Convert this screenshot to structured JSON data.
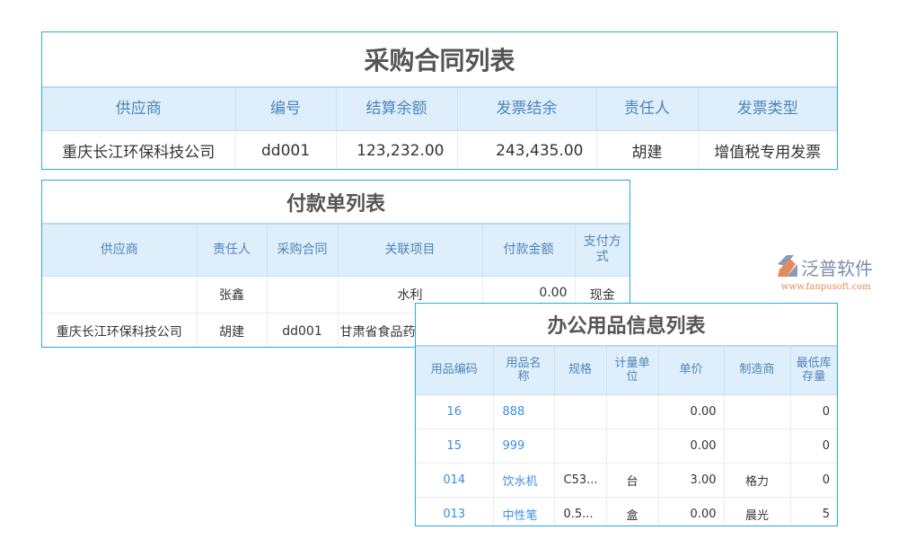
{
  "purchase_contract": {
    "title": "采购合同列表",
    "headers": [
      "供应商",
      "编号",
      "结算余额",
      "发票结余",
      "责任人",
      "发票类型"
    ],
    "rows": [
      [
        "重庆长江环保科技公司",
        "dd001",
        "123,232.00",
        "243,435.00",
        "胡建",
        "增值税专用发票"
      ]
    ]
  },
  "payment": {
    "title": "付款单列表",
    "headers": [
      "供应商",
      "责任人",
      "采购合同",
      "关联项目",
      "付款金额",
      "支付方式"
    ],
    "rows": [
      [
        "",
        "张鑫",
        "",
        "水利",
        "0.00",
        "现金"
      ],
      [
        "重庆长江环保科技公司",
        "胡建",
        "dd001",
        "甘肃省食品药",
        "",
        ""
      ]
    ]
  },
  "office_supplies": {
    "title": "办公用品信息列表",
    "headers": [
      "用品编码",
      "用品名称",
      "规格",
      "计量单位",
      "单价",
      "制造商",
      "最低库存量"
    ],
    "rows": [
      [
        "16",
        "888",
        "",
        "",
        "0.00",
        "",
        "0"
      ],
      [
        "15",
        "999",
        "",
        "",
        "0.00",
        "",
        "0"
      ],
      [
        "014",
        "饮水机",
        "C53...",
        "台",
        "3.00",
        "格力",
        "0"
      ],
      [
        "013",
        "中性笔",
        "0.5...",
        "盒",
        "0.00",
        "晨光",
        "5"
      ]
    ]
  },
  "logo": {
    "name": "泛普软件",
    "url": "www.fanpusoft.com"
  },
  "colors": {
    "border": "#29a8e0",
    "header_bg": "#deeefb",
    "header_text": "#4f86b8",
    "link": "#3a8ee6"
  }
}
